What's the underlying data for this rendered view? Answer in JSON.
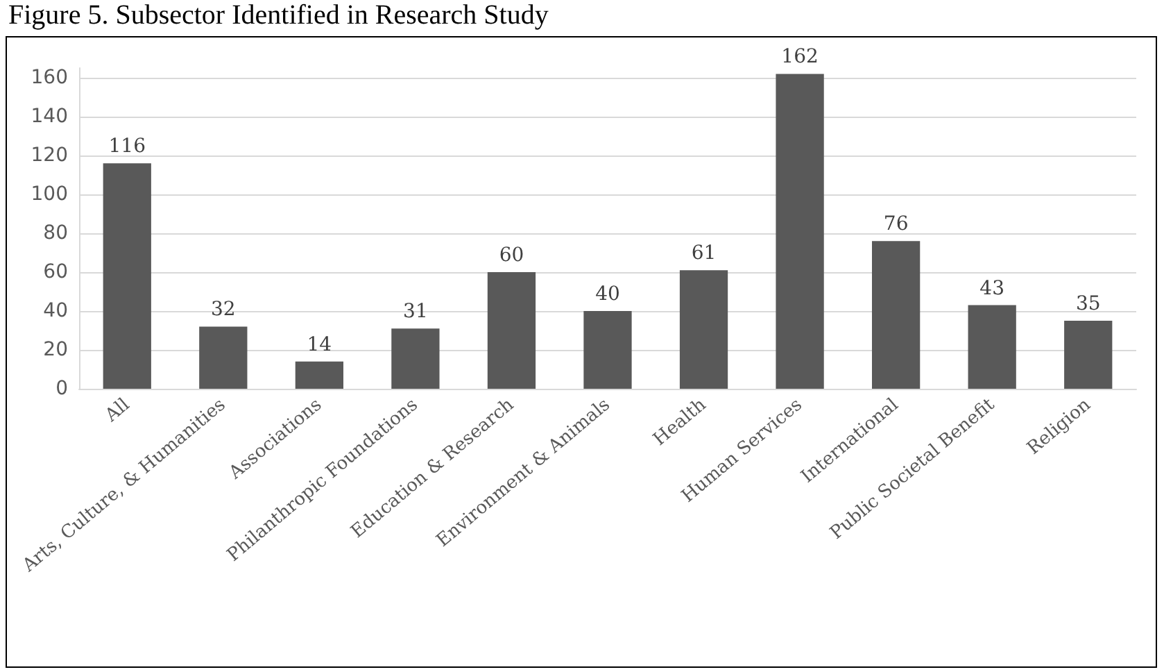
{
  "chart_data": {
    "type": "bar",
    "title": "Figure 5. Subsector Identified in Research Study",
    "categories": [
      "All",
      "Arts, Culture, & Humanities",
      "Associations",
      "Philanthropic Foundations",
      "Education & Research",
      "Environment & Animals",
      "Health",
      "Human Services",
      "International",
      "Public Societal Benefit",
      "Religion"
    ],
    "values": [
      116,
      32,
      14,
      31,
      60,
      40,
      61,
      162,
      76,
      43,
      35
    ],
    "color": "#595959",
    "ylim": [
      0,
      165
    ],
    "yticks": [
      0,
      20,
      40,
      60,
      80,
      100,
      120,
      140,
      160
    ],
    "grid": "y",
    "data_labels": true
  }
}
